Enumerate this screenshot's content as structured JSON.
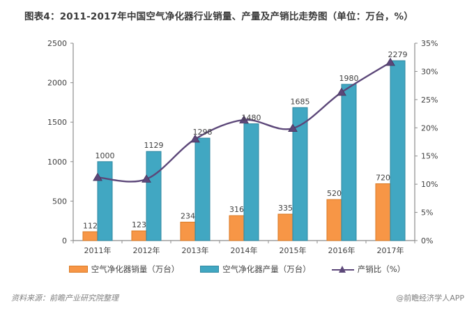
{
  "title": "图表4：2011-2017年中国空气净化器行业销量、产量及产销比走势图（单位：万台，%）",
  "footer": {
    "source": "资料来源：前瞻产业研究院整理",
    "watermark": "@前瞻经济学人APP"
  },
  "colors": {
    "text": "#404040",
    "axis": "#8c8c8c",
    "title_text": "#3a3a3a",
    "footer_text": "#808080",
    "background": "#ffffff"
  },
  "chart_data": {
    "type": "bar",
    "subtype": "grouped-bars-with-line-overlay",
    "title": "图表4：2011-2017年中国空气净化器行业销量、产量及产销比走势图（单位：万台，%）",
    "categories": [
      "2011年",
      "2012年",
      "2013年",
      "2014年",
      "2015年",
      "2016年",
      "2017年"
    ],
    "series": [
      {
        "name": "空气净化器销量（万台）",
        "type": "bar",
        "axis": "left",
        "color": "#f79646",
        "border": "#d97a25",
        "values": [
          112,
          123,
          234,
          316,
          335,
          520,
          720
        ]
      },
      {
        "name": "空气净化器产量（万台）",
        "type": "bar",
        "axis": "left",
        "color": "#41a7c2",
        "border": "#2e87a0",
        "values": [
          1000,
          1129,
          1298,
          1480,
          1685,
          1980,
          2279
        ]
      },
      {
        "name": "产销比（%）",
        "type": "line",
        "axis": "right",
        "color": "#5c4779",
        "marker": "triangle",
        "values": [
          11.2,
          10.9,
          18.0,
          21.4,
          19.9,
          26.3,
          31.6
        ]
      }
    ],
    "left_axis": {
      "min": 0,
      "max": 2500,
      "step": 500,
      "tick_labels": [
        "0",
        "500",
        "1000",
        "1500",
        "2000",
        "2500"
      ]
    },
    "right_axis": {
      "min": 0,
      "max": 35,
      "step": 5,
      "tick_labels": [
        "0%",
        "5%",
        "10%",
        "15%",
        "20%",
        "25%",
        "30%",
        "35%"
      ]
    },
    "grid": false,
    "bar_value_labels": true,
    "legend_position": "bottom"
  }
}
